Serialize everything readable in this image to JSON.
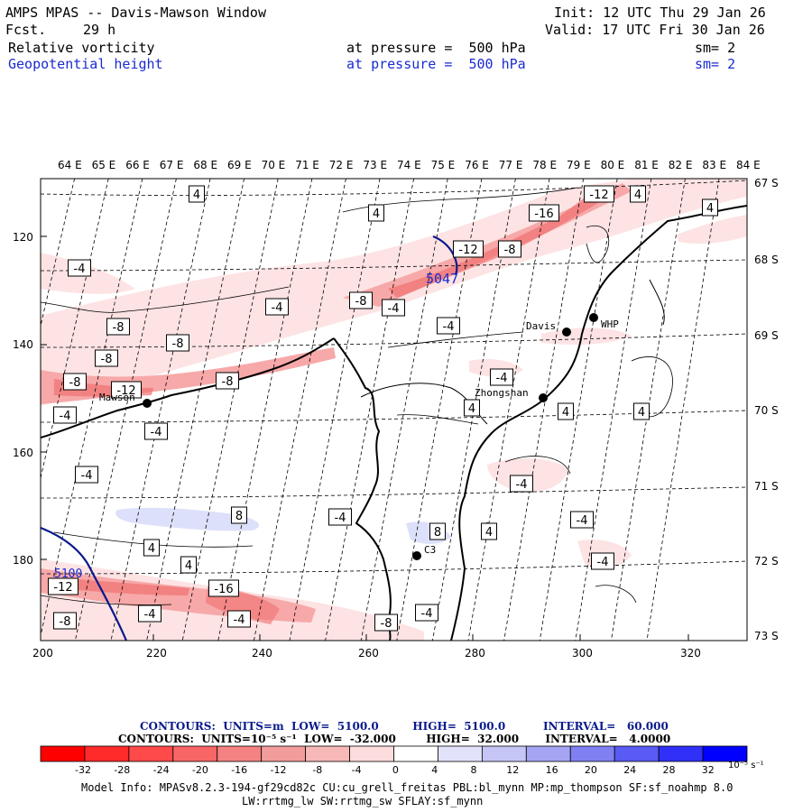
{
  "header": {
    "title": "AMPS MPAS -- Davis-Mawson Window",
    "fcst_label": "Fcst.",
    "fcst_value": "29 h",
    "init": "Init: 12 UTC Thu 29 Jan 26",
    "valid": "Valid: 17 UTC Fri 30 Jan 26",
    "field1": {
      "name": "Relative vorticity",
      "level": "at pressure =  500 hPa",
      "smooth": "sm= 2"
    },
    "field2": {
      "name": "Geopotential height",
      "level": "at pressure =  500 hPa",
      "smooth": "sm= 2"
    }
  },
  "map": {
    "top_lon_labels": [
      "64 E",
      "65 E",
      "66 E",
      "67 E",
      "68 E",
      "69 E",
      "70 E",
      "71 E",
      "72 E",
      "73 E",
      "74 E",
      "75 E",
      "76 E",
      "77 E",
      "78 E",
      "79 E",
      "80 E",
      "81 E",
      "82 E",
      "83 E",
      "84 E"
    ],
    "right_lat_labels": [
      "67 S",
      "68 S",
      "69 S",
      "70 S",
      "71 S",
      "72 S",
      "73 S"
    ],
    "y_ticks": [
      "120",
      "140",
      "160",
      "180"
    ],
    "x_ticks": [
      "200",
      "220",
      "240",
      "260",
      "280",
      "300",
      "320"
    ],
    "stations": [
      {
        "name": "Davis",
        "label": "Davis"
      },
      {
        "name": "whp",
        "label": "WHP"
      },
      {
        "name": "zhongshan",
        "label": "Zhongshan"
      },
      {
        "name": "mawson",
        "label": "Mawson"
      },
      {
        "name": "c3",
        "label": "C3"
      }
    ],
    "height_labels": [
      "5047",
      "5100"
    ],
    "vorticity_labels": [
      "4",
      "-4",
      "-8",
      "-12",
      "-16",
      "8"
    ],
    "colors": {
      "neg_light": "#fde3e3",
      "neg_mid": "#f7a8a8",
      "neg_dark": "#f07070",
      "pos_light": "#dde0fa",
      "pos_mid": "#c4c8f4",
      "coast": "#000000",
      "height_contour": "#0a1a8c"
    }
  },
  "contour_info": {
    "line1": "CONTOURS:  UNITS=m  LOW=  5100.0         HIGH=  5100.0          INTERVAL=   60.000",
    "line2": "CONTOURS:  UNITS=10⁻⁵ s⁻¹  LOW=  -32.000        HIGH=  32.000       INTERVAL=   4.0000"
  },
  "colorbar": {
    "ticks": [
      "-32",
      "-28",
      "-24",
      "-20",
      "-16",
      "-12",
      "-8",
      "-4",
      "0",
      "4",
      "8",
      "12",
      "16",
      "20",
      "24",
      "28",
      "32"
    ],
    "unit": "10⁻⁵ s⁻¹",
    "colors": [
      "#ff0000",
      "#ff2a2a",
      "#ff4a4a",
      "#f86666",
      "#f48282",
      "#f29c9c",
      "#f7b8b8",
      "#fcdcdc",
      "#ffffff",
      "#ffffff",
      "#e2e2fb",
      "#c6c6f6",
      "#a4a4f2",
      "#8080f2",
      "#5a5af4",
      "#3030f8",
      "#0000ff"
    ]
  },
  "footer": {
    "line1": "Model Info: MPASv8.2.3-194-gf29cd82c CU:cu_grell_freitas PBL:bl_mynn MP:mp_thompson SF:sf_noahmp 8.0",
    "line2": "LW:rrtmg_lw SW:rrtmg_sw SFLAY:sf_mynn"
  }
}
